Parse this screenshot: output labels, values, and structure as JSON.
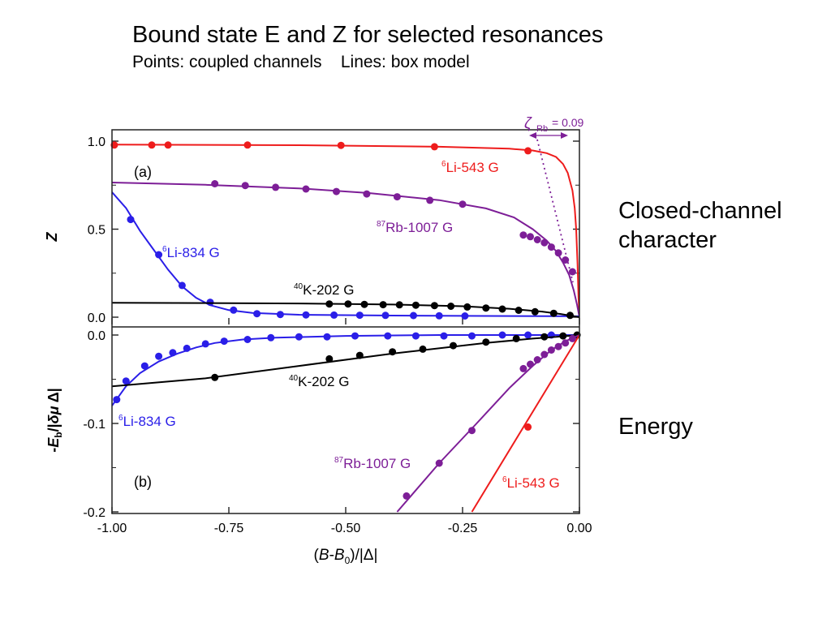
{
  "slide": {
    "title": "Bound state E and Z for selected resonances",
    "subtitle_points": "Points: coupled channels",
    "subtitle_lines": "Lines: box model",
    "label_top": "Closed-channel character",
    "label_bottom": "Energy"
  },
  "chart_data": [
    {
      "type": "line",
      "panel": "(a)",
      "ylabel": "Z",
      "xlim": [
        -1.0,
        0.0
      ],
      "ylim": [
        0.0,
        1.0
      ],
      "yticks": [
        "0.0",
        "0.5",
        "1.0"
      ],
      "annotation": "ζ_Rb = 0.09",
      "series": [
        {
          "name": "6Li-543 G",
          "color": "#ee1c1c",
          "points": [
            [
              -0.995,
              0.978
            ],
            [
              -0.915,
              0.978
            ],
            [
              -0.88,
              0.978
            ],
            [
              -0.71,
              0.978
            ],
            [
              -0.51,
              0.976
            ],
            [
              -0.31,
              0.968
            ],
            [
              -0.11,
              0.945
            ]
          ],
          "line": [
            [
              -1.0,
              0.98
            ],
            [
              -0.6,
              0.977
            ],
            [
              -0.3,
              0.968
            ],
            [
              -0.15,
              0.957
            ],
            [
              -0.1,
              0.947
            ],
            [
              -0.07,
              0.932
            ],
            [
              -0.05,
              0.91
            ],
            [
              -0.035,
              0.87
            ],
            [
              -0.025,
              0.82
            ],
            [
              -0.015,
              0.72
            ],
            [
              -0.01,
              0.62
            ],
            [
              -0.007,
              0.5
            ],
            [
              -0.004,
              0.3
            ],
            [
              -0.002,
              0.12
            ],
            [
              0.0,
              0.0
            ]
          ]
        },
        {
          "name": "87Rb-1007 G",
          "color": "#7d1e97",
          "points": [
            [
              -0.78,
              0.758
            ],
            [
              -0.715,
              0.748
            ],
            [
              -0.65,
              0.738
            ],
            [
              -0.585,
              0.728
            ],
            [
              -0.52,
              0.714
            ],
            [
              -0.455,
              0.7
            ],
            [
              -0.39,
              0.684
            ],
            [
              -0.32,
              0.664
            ],
            [
              -0.25,
              0.642
            ],
            [
              -0.12,
              0.467
            ],
            [
              -0.105,
              0.457
            ],
            [
              -0.09,
              0.44
            ],
            [
              -0.075,
              0.423
            ],
            [
              -0.06,
              0.398
            ],
            [
              -0.045,
              0.365
            ],
            [
              -0.03,
              0.325
            ],
            [
              -0.015,
              0.258
            ]
          ],
          "line": [
            [
              -1.0,
              0.765
            ],
            [
              -0.8,
              0.752
            ],
            [
              -0.6,
              0.732
            ],
            [
              -0.45,
              0.705
            ],
            [
              -0.3,
              0.665
            ],
            [
              -0.2,
              0.618
            ],
            [
              -0.14,
              0.567
            ],
            [
              -0.1,
              0.5
            ],
            [
              -0.07,
              0.435
            ],
            [
              -0.05,
              0.375
            ],
            [
              -0.035,
              0.31
            ],
            [
              -0.022,
              0.24
            ],
            [
              -0.012,
              0.15
            ],
            [
              -0.005,
              0.07
            ],
            [
              0.0,
              0.0
            ]
          ]
        },
        {
          "name": "6Li-834 G",
          "color": "#2a1ee8",
          "points": [
            [
              -0.96,
              0.555
            ],
            [
              -0.9,
              0.355
            ],
            [
              -0.85,
              0.18
            ],
            [
              -0.79,
              0.085
            ],
            [
              -0.74,
              0.04
            ],
            [
              -0.69,
              0.02
            ],
            [
              -0.64,
              0.015
            ],
            [
              -0.585,
              0.013
            ],
            [
              -0.525,
              0.012
            ],
            [
              -0.47,
              0.011
            ],
            [
              -0.415,
              0.01
            ],
            [
              -0.355,
              0.009
            ],
            [
              -0.3,
              0.008
            ],
            [
              -0.245,
              0.007
            ]
          ],
          "line": [
            [
              -1.0,
              0.71
            ],
            [
              -0.97,
              0.62
            ],
            [
              -0.94,
              0.49
            ],
            [
              -0.91,
              0.38
            ],
            [
              -0.88,
              0.27
            ],
            [
              -0.85,
              0.175
            ],
            [
              -0.82,
              0.11
            ],
            [
              -0.79,
              0.068
            ],
            [
              -0.75,
              0.04
            ],
            [
              -0.7,
              0.024
            ],
            [
              -0.6,
              0.014
            ],
            [
              -0.4,
              0.009
            ],
            [
              -0.2,
              0.007
            ],
            [
              0.0,
              0.005
            ]
          ]
        },
        {
          "name": "40K-202 G",
          "color": "#000000",
          "points": [
            [
              -0.535,
              0.075
            ],
            [
              -0.495,
              0.075
            ],
            [
              -0.46,
              0.073
            ],
            [
              -0.42,
              0.071
            ],
            [
              -0.385,
              0.07
            ],
            [
              -0.35,
              0.068
            ],
            [
              -0.31,
              0.066
            ],
            [
              -0.275,
              0.062
            ],
            [
              -0.24,
              0.058
            ],
            [
              -0.2,
              0.052
            ],
            [
              -0.165,
              0.046
            ],
            [
              -0.13,
              0.039
            ],
            [
              -0.095,
              0.031
            ],
            [
              -0.055,
              0.022
            ],
            [
              -0.02,
              0.01
            ]
          ],
          "line": [
            [
              -1.0,
              0.082
            ],
            [
              -0.6,
              0.078
            ],
            [
              -0.4,
              0.072
            ],
            [
              -0.25,
              0.062
            ],
            [
              -0.15,
              0.048
            ],
            [
              -0.08,
              0.032
            ],
            [
              -0.04,
              0.018
            ],
            [
              0.0,
              0.0
            ]
          ]
        }
      ]
    },
    {
      "type": "line",
      "panel": "(b)",
      "ylabel": "-E_b/|δμ Δ|",
      "xlabel": "(B-B_0)/|Δ|",
      "xlim": [
        -1.0,
        0.0
      ],
      "ylim": [
        -0.2,
        0.0
      ],
      "xticks": [
        "-1.00",
        "-0.75",
        "-0.50",
        "-0.25",
        "0.00"
      ],
      "yticks": [
        "-0.2",
        "-0.1",
        "0.0"
      ],
      "series": [
        {
          "name": "6Li-834 G",
          "color": "#2a1ee8",
          "points": [
            [
              -0.99,
              -0.073
            ],
            [
              -0.97,
              -0.052
            ],
            [
              -0.93,
              -0.035
            ],
            [
              -0.9,
              -0.024
            ],
            [
              -0.87,
              -0.02
            ],
            [
              -0.84,
              -0.015
            ],
            [
              -0.8,
              -0.01
            ],
            [
              -0.76,
              -0.007
            ],
            [
              -0.71,
              -0.005
            ],
            [
              -0.66,
              -0.003
            ],
            [
              -0.6,
              -0.002
            ],
            [
              -0.54,
              -0.002
            ],
            [
              -0.48,
              -0.001
            ],
            [
              -0.41,
              -0.001
            ],
            [
              -0.35,
              -0.001
            ],
            [
              -0.29,
              -0.001
            ],
            [
              -0.23,
              -0.001
            ],
            [
              -0.165,
              0.0
            ],
            [
              -0.11,
              0.0
            ],
            [
              -0.06,
              0.0
            ]
          ],
          "line": [
            [
              -1.0,
              -0.08
            ],
            [
              -0.97,
              -0.058
            ],
            [
              -0.94,
              -0.043
            ],
            [
              -0.9,
              -0.03
            ],
            [
              -0.86,
              -0.021
            ],
            [
              -0.82,
              -0.014
            ],
            [
              -0.78,
              -0.009
            ],
            [
              -0.72,
              -0.005
            ],
            [
              -0.65,
              -0.003
            ],
            [
              -0.5,
              -0.001
            ],
            [
              -0.3,
              0.0
            ],
            [
              0.0,
              0.0
            ]
          ]
        },
        {
          "name": "40K-202 G",
          "color": "#000000",
          "points": [
            [
              -0.78,
              -0.048
            ],
            [
              -0.535,
              -0.027
            ],
            [
              -0.47,
              -0.023
            ],
            [
              -0.4,
              -0.019
            ],
            [
              -0.335,
              -0.016
            ],
            [
              -0.27,
              -0.012
            ],
            [
              -0.2,
              -0.008
            ],
            [
              -0.135,
              -0.004
            ],
            [
              -0.075,
              -0.002
            ],
            [
              -0.035,
              -0.001
            ],
            [
              -0.005,
              0.0
            ]
          ],
          "line": [
            [
              -1.0,
              -0.058
            ],
            [
              -0.8,
              -0.049
            ],
            [
              -0.6,
              -0.035
            ],
            [
              -0.4,
              -0.021
            ],
            [
              -0.2,
              -0.009
            ],
            [
              -0.1,
              -0.004
            ],
            [
              -0.05,
              -0.002
            ],
            [
              0.0,
              0.0
            ]
          ]
        },
        {
          "name": "87Rb-1007 G",
          "color": "#7d1e97",
          "points": [
            [
              -0.37,
              -0.182
            ],
            [
              -0.3,
              -0.145
            ],
            [
              -0.23,
              -0.108
            ],
            [
              -0.12,
              -0.038
            ],
            [
              -0.105,
              -0.033
            ],
            [
              -0.09,
              -0.028
            ],
            [
              -0.075,
              -0.022
            ],
            [
              -0.06,
              -0.017
            ],
            [
              -0.045,
              -0.013
            ],
            [
              -0.03,
              -0.009
            ],
            [
              -0.015,
              -0.004
            ]
          ],
          "line": [
            [
              -0.39,
              -0.2
            ],
            [
              -0.3,
              -0.145
            ],
            [
              -0.22,
              -0.1
            ],
            [
              -0.15,
              -0.06
            ],
            [
              -0.1,
              -0.035
            ],
            [
              -0.06,
              -0.017
            ],
            [
              -0.03,
              -0.007
            ],
            [
              0.0,
              0.0
            ]
          ]
        },
        {
          "name": "6Li-543 G",
          "color": "#ee1c1c",
          "points": [
            [
              -0.11,
              -0.104
            ]
          ],
          "line": [
            [
              -0.23,
              -0.2
            ],
            [
              0.0,
              0.0
            ]
          ]
        }
      ]
    }
  ]
}
